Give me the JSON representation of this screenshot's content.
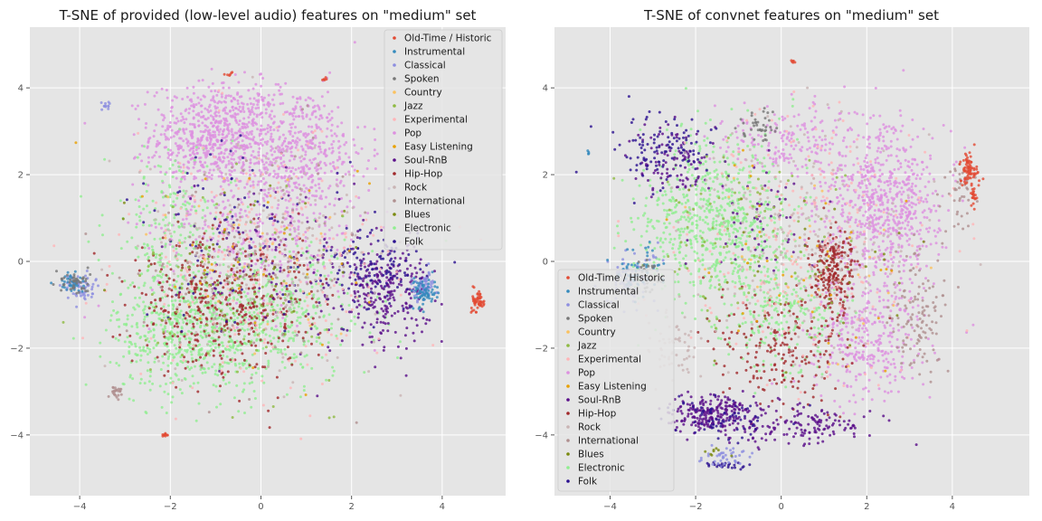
{
  "legend_order": [
    "Old-Time / Historic",
    "Instrumental",
    "Classical",
    "Spoken",
    "Country",
    "Jazz",
    "Experimental",
    "Pop",
    "Easy Listening",
    "Soul-RnB",
    "Hip-Hop",
    "Rock",
    "International",
    "Blues",
    "Electronic",
    "Folk"
  ],
  "colors": {
    "Old-Time / Historic": "#e24a33",
    "Instrumental": "#348abd",
    "Classical": "#8d8ee0",
    "Spoken": "#777777",
    "Country": "#fbc15e",
    "Jazz": "#8eba42",
    "Experimental": "#ffb5b8",
    "Pop": "#dd90e0",
    "Easy Listening": "#e8a000",
    "Soul-RnB": "#5a0e8a",
    "Hip-Hop": "#a0282a",
    "Rock": "#c9b4b4",
    "International": "#b09090",
    "Blues": "#7a8a10",
    "Electronic": "#90ee90",
    "Folk": "#2a1090"
  },
  "chart_data": [
    {
      "type": "scatter",
      "title": "T-SNE of provided (low-level audio) features on \"medium\" set",
      "xlim": [
        -5.1,
        5.4
      ],
      "ylim": [
        -5.4,
        5.4
      ],
      "xticks": [
        -4,
        -2,
        0,
        2,
        4
      ],
      "yticks": [
        -4,
        -2,
        0,
        2,
        4
      ],
      "grid": true,
      "legend": "top-right",
      "series": [
        {
          "name": "Pop",
          "clusters": [
            [
              -1.0,
              2.9,
              1.3,
              1.1,
              700
            ],
            [
              0.8,
              2.6,
              1.4,
              1.3,
              450
            ],
            [
              0.0,
              0.8,
              2.2,
              1.8,
              400
            ]
          ]
        },
        {
          "name": "Electronic",
          "clusters": [
            [
              -1.5,
              -1.6,
              1.6,
              1.3,
              650
            ],
            [
              0.5,
              -1.2,
              1.8,
              1.4,
              350
            ],
            [
              -2.0,
              0.8,
              1.3,
              1.6,
              200
            ]
          ]
        },
        {
          "name": "Hip-Hop",
          "clusters": [
            [
              -1.2,
              -1.0,
              1.5,
              1.3,
              300
            ],
            [
              0.0,
              -1.0,
              1.7,
              1.5,
              150
            ]
          ]
        },
        {
          "name": "Soul-RnB",
          "clusters": [
            [
              2.7,
              -0.7,
              0.9,
              1.0,
              260
            ],
            [
              0.5,
              0.1,
              2.0,
              1.8,
              120
            ]
          ]
        },
        {
          "name": "Folk",
          "clusters": [
            [
              2.6,
              -0.2,
              1.0,
              0.9,
              130
            ],
            [
              -0.5,
              0.5,
              2.2,
              2.0,
              80
            ]
          ]
        },
        {
          "name": "Experimental",
          "clusters": [
            [
              0.0,
              0.0,
              2.7,
              2.6,
              280
            ]
          ]
        },
        {
          "name": "Rock",
          "clusters": [
            [
              0.0,
              0.2,
              2.4,
              2.4,
              200
            ]
          ]
        },
        {
          "name": "International",
          "clusters": [
            [
              0.0,
              0.2,
              2.4,
              2.4,
              120
            ],
            [
              -3.2,
              -3.0,
              0.15,
              0.12,
              25
            ]
          ]
        },
        {
          "name": "Jazz",
          "clusters": [
            [
              -0.8,
              -0.6,
              2.2,
              2.0,
              90
            ]
          ]
        },
        {
          "name": "Classical",
          "clusters": [
            [
              -4.0,
              -0.6,
              0.3,
              0.3,
              60
            ],
            [
              3.6,
              -0.6,
              0.25,
              0.3,
              60
            ],
            [
              -3.4,
              3.6,
              0.1,
              0.1,
              12
            ]
          ]
        },
        {
          "name": "Instrumental",
          "clusters": [
            [
              3.6,
              -0.7,
              0.25,
              0.3,
              70
            ],
            [
              -4.2,
              -0.5,
              0.25,
              0.2,
              40
            ]
          ]
        },
        {
          "name": "Spoken",
          "clusters": [
            [
              -4.1,
              -0.5,
              0.3,
              0.25,
              45
            ]
          ]
        },
        {
          "name": "Old-Time / Historic",
          "clusters": [
            [
              4.8,
              -0.9,
              0.12,
              0.25,
              55
            ],
            [
              -2.1,
              -4.0,
              0.1,
              0.05,
              10
            ],
            [
              1.4,
              4.2,
              0.06,
              0.05,
              6
            ],
            [
              -0.7,
              4.3,
              0.06,
              0.05,
              6
            ]
          ]
        },
        {
          "name": "Easy Listening",
          "clusters": [
            [
              0.0,
              0.0,
              2.3,
              2.3,
              35
            ]
          ]
        },
        {
          "name": "Blues",
          "clusters": [
            [
              0.0,
              0.0,
              2.3,
              2.3,
              30
            ]
          ]
        },
        {
          "name": "Country",
          "clusters": [
            [
              0.0,
              0.0,
              2.3,
              2.3,
              30
            ]
          ]
        }
      ]
    },
    {
      "type": "scatter",
      "title": "T-SNE of convnet features on \"medium\" set",
      "xlim": [
        -5.3,
        5.8
      ],
      "ylim": [
        -5.4,
        5.4
      ],
      "xticks": [
        -4,
        -2,
        0,
        2,
        4
      ],
      "yticks": [
        -4,
        -2,
        0,
        2,
        4
      ],
      "grid": true,
      "legend": "bottom-left",
      "series": [
        {
          "name": "Pop",
          "clusters": [
            [
              2.4,
              1.3,
              1.3,
              1.6,
              700
            ],
            [
              2.0,
              -1.8,
              1.2,
              1.3,
              350
            ],
            [
              0.2,
              2.8,
              1.5,
              0.8,
              200
            ]
          ]
        },
        {
          "name": "Electronic",
          "clusters": [
            [
              -1.6,
              1.0,
              1.6,
              1.8,
              700
            ],
            [
              0.0,
              -1.2,
              1.3,
              1.3,
              250
            ]
          ]
        },
        {
          "name": "Hip-Hop",
          "clusters": [
            [
              1.2,
              -0.2,
              0.45,
              0.8,
              220
            ],
            [
              0.0,
              -2.0,
              1.5,
              1.2,
              200
            ]
          ]
        },
        {
          "name": "Soul-RnB",
          "clusters": [
            [
              -1.6,
              -3.5,
              1.0,
              0.4,
              230
            ],
            [
              0.5,
              -3.8,
              1.6,
              0.4,
              150
            ],
            [
              -2.5,
              2.4,
              0.9,
              0.8,
              100
            ],
            [
              -0.5,
              1.0,
              1.3,
              1.2,
              60
            ]
          ]
        },
        {
          "name": "Folk",
          "clusters": [
            [
              -2.8,
              2.6,
              1.0,
              0.8,
              110
            ],
            [
              -1.5,
              -3.6,
              1.2,
              0.5,
              70
            ],
            [
              -1.2,
              -4.7,
              0.5,
              0.1,
              25
            ]
          ]
        },
        {
          "name": "Experimental",
          "clusters": [
            [
              0.5,
              0.5,
              2.6,
              2.6,
              250
            ]
          ]
        },
        {
          "name": "Rock",
          "clusters": [
            [
              0.4,
              0.3,
              2.4,
              2.4,
              220
            ],
            [
              -2.5,
              -2.0,
              0.6,
              0.8,
              60
            ]
          ]
        },
        {
          "name": "International",
          "clusters": [
            [
              3.2,
              -1.2,
              0.6,
              1.3,
              120
            ],
            [
              4.2,
              1.5,
              0.35,
              0.8,
              40
            ]
          ]
        },
        {
          "name": "Jazz",
          "clusters": [
            [
              -1.0,
              0.5,
              2.0,
              2.0,
              90
            ]
          ]
        },
        {
          "name": "Classical",
          "clusters": [
            [
              -3.5,
              -0.4,
              0.6,
              0.6,
              80
            ],
            [
              -1.4,
              -4.5,
              0.6,
              0.2,
              40
            ]
          ]
        },
        {
          "name": "Instrumental",
          "clusters": [
            [
              -3.3,
              -0.2,
              0.6,
              0.5,
              60
            ],
            [
              -4.5,
              2.5,
              0.05,
              0.05,
              4
            ]
          ]
        },
        {
          "name": "Spoken",
          "clusters": [
            [
              -0.5,
              3.1,
              0.4,
              0.3,
              40
            ],
            [
              -3.0,
              -0.3,
              0.4,
              0.4,
              25
            ]
          ]
        },
        {
          "name": "Old-Time / Historic",
          "clusters": [
            [
              4.4,
              2.1,
              0.2,
              0.45,
              80
            ],
            [
              4.5,
              1.5,
              0.08,
              0.25,
              20
            ],
            [
              0.3,
              4.6,
              0.08,
              0.05,
              6
            ]
          ]
        },
        {
          "name": "Easy Listening",
          "clusters": [
            [
              0.5,
              0.0,
              2.4,
              2.4,
              35
            ]
          ]
        },
        {
          "name": "Blues",
          "clusters": [
            [
              0.5,
              0.0,
              2.4,
              2.4,
              30
            ],
            [
              -1.5,
              -4.4,
              0.3,
              0.1,
              8
            ]
          ]
        },
        {
          "name": "Country",
          "clusters": [
            [
              0.5,
              0.0,
              2.4,
              2.4,
              30
            ]
          ]
        }
      ]
    }
  ]
}
